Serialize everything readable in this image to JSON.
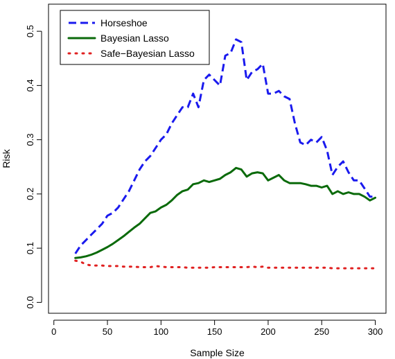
{
  "chart_data": {
    "type": "line",
    "title": "",
    "xlabel": "Sample Size",
    "ylabel": "Risk",
    "xlim": [
      -5,
      310
    ],
    "ylim": [
      -0.02,
      0.55
    ],
    "xticks": [
      0,
      50,
      100,
      150,
      200,
      250,
      300
    ],
    "yticks": [
      0.0,
      0.1,
      0.2,
      0.3,
      0.4,
      0.5
    ],
    "xtick_labels": [
      "0",
      "50",
      "100",
      "150",
      "200",
      "250",
      "300"
    ],
    "ytick_labels": [
      "0.0",
      "0.1",
      "0.2",
      "0.3",
      "0.4",
      "0.5"
    ],
    "grid": false,
    "legend_position": "top-left",
    "x": [
      20,
      25,
      30,
      35,
      40,
      45,
      50,
      55,
      60,
      65,
      70,
      75,
      80,
      85,
      90,
      95,
      100,
      105,
      110,
      115,
      120,
      125,
      130,
      135,
      140,
      145,
      150,
      155,
      160,
      165,
      170,
      175,
      180,
      185,
      190,
      195,
      200,
      205,
      210,
      215,
      220,
      225,
      230,
      235,
      240,
      245,
      250,
      255,
      260,
      265,
      270,
      275,
      280,
      285,
      290,
      295,
      300
    ],
    "series": [
      {
        "name": "Horseshoe",
        "color": "#1a1aee",
        "style": "dashed",
        "values": [
          0.09,
          0.105,
          0.115,
          0.125,
          0.135,
          0.145,
          0.16,
          0.165,
          0.175,
          0.19,
          0.205,
          0.225,
          0.245,
          0.26,
          0.27,
          0.285,
          0.3,
          0.31,
          0.33,
          0.345,
          0.36,
          0.36,
          0.385,
          0.36,
          0.41,
          0.42,
          0.41,
          0.4,
          0.455,
          0.46,
          0.485,
          0.48,
          0.41,
          0.425,
          0.43,
          0.44,
          0.385,
          0.385,
          0.39,
          0.38,
          0.375,
          0.33,
          0.295,
          0.29,
          0.3,
          0.295,
          0.305,
          0.28,
          0.235,
          0.25,
          0.26,
          0.24,
          0.225,
          0.225,
          0.21,
          0.195,
          0.195
        ]
      },
      {
        "name": "Bayesian Lasso",
        "color": "#0a6a0a",
        "style": "solid",
        "values": [
          0.082,
          0.083,
          0.085,
          0.088,
          0.092,
          0.097,
          0.102,
          0.108,
          0.115,
          0.122,
          0.13,
          0.138,
          0.145,
          0.155,
          0.165,
          0.168,
          0.175,
          0.18,
          0.188,
          0.198,
          0.205,
          0.208,
          0.218,
          0.22,
          0.225,
          0.222,
          0.225,
          0.228,
          0.235,
          0.24,
          0.248,
          0.245,
          0.232,
          0.238,
          0.24,
          0.238,
          0.225,
          0.23,
          0.235,
          0.225,
          0.22,
          0.22,
          0.22,
          0.218,
          0.215,
          0.215,
          0.212,
          0.215,
          0.2,
          0.205,
          0.2,
          0.203,
          0.2,
          0.2,
          0.195,
          0.188,
          0.193
        ]
      },
      {
        "name": "Safe−Bayesian Lasso",
        "color": "#e02020",
        "style": "dotted",
        "values": [
          0.077,
          0.075,
          0.07,
          0.068,
          0.068,
          0.068,
          0.067,
          0.067,
          0.067,
          0.066,
          0.066,
          0.066,
          0.065,
          0.065,
          0.065,
          0.067,
          0.066,
          0.065,
          0.065,
          0.065,
          0.065,
          0.064,
          0.064,
          0.064,
          0.064,
          0.064,
          0.065,
          0.065,
          0.065,
          0.065,
          0.065,
          0.065,
          0.065,
          0.066,
          0.065,
          0.066,
          0.064,
          0.064,
          0.064,
          0.064,
          0.064,
          0.064,
          0.064,
          0.064,
          0.064,
          0.064,
          0.064,
          0.064,
          0.063,
          0.063,
          0.063,
          0.063,
          0.063,
          0.063,
          0.063,
          0.063,
          0.063
        ]
      }
    ]
  }
}
